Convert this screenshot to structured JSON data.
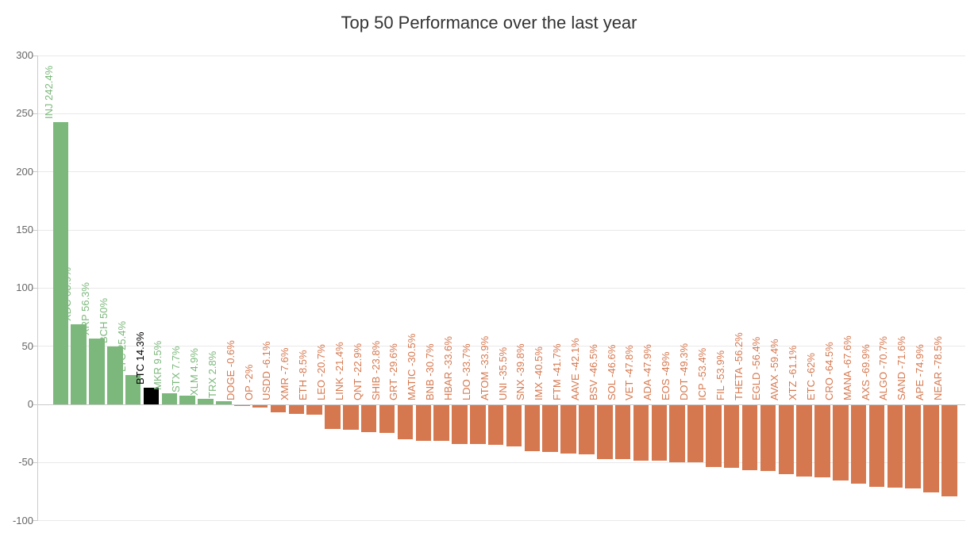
{
  "chart_data": {
    "type": "bar",
    "title": "Top 50 Performance over the last year",
    "xlabel": "",
    "ylabel": "",
    "unit": "%",
    "ylim": [
      -100,
      300
    ],
    "yticks": [
      300,
      250,
      200,
      150,
      100,
      50,
      0,
      -50,
      -100
    ],
    "grid": true,
    "legend": "none",
    "highlight_category": "BTC",
    "colors": {
      "positive": "#7cb87c",
      "negative": "#d6784f",
      "highlight": "#000000",
      "axis_text": "#666666",
      "grid_line": "#e9e9e9",
      "zero_line": "#c9c9c9",
      "axis_line": "#cccccc",
      "title_text": "#333333"
    },
    "categories": [
      "INJ",
      "XDC",
      "XRP",
      "BCH",
      "LTC",
      "BTC",
      "MKR",
      "STX",
      "XLM",
      "TRX",
      "DOGE",
      "OP",
      "USDD",
      "XMR",
      "ETH",
      "LEO",
      "LINK",
      "QNT",
      "SHIB",
      "GRT",
      "MATIC",
      "BNB",
      "HBAR",
      "LDO",
      "ATOM",
      "UNI",
      "SNX",
      "IMX",
      "FTM",
      "AAVE",
      "BSV",
      "SOL",
      "VET",
      "ADA",
      "EOS",
      "DOT",
      "ICP",
      "FIL",
      "THETA",
      "EGLD",
      "AVAX",
      "XTZ",
      "ETC",
      "CRO",
      "MANA",
      "AXS",
      "ALGO",
      "SAND",
      "APE",
      "NEAR"
    ],
    "values": [
      242.4,
      68.9,
      56.3,
      50,
      25.4,
      14.3,
      9.5,
      7.7,
      4.9,
      2.8,
      -0.6,
      -2,
      -6.1,
      -7.6,
      -8.5,
      -20.7,
      -21.4,
      -22.9,
      -23.8,
      -29.6,
      -30.5,
      -30.7,
      -33.6,
      -33.7,
      -33.9,
      -35.5,
      -39.8,
      -40.5,
      -41.7,
      -42.1,
      -46.5,
      -46.6,
      -47.8,
      -47.9,
      -49,
      -49.3,
      -53.4,
      -53.9,
      -56.2,
      -56.4,
      -59.4,
      -61.1,
      -62,
      -64.5,
      -67.6,
      -69.9,
      -70.7,
      -71.6,
      -74.9,
      -78.5
    ]
  }
}
